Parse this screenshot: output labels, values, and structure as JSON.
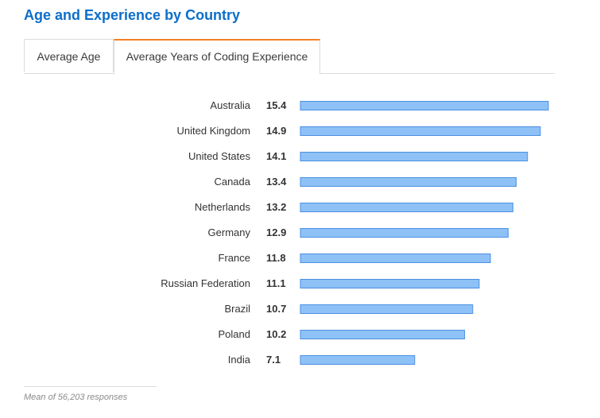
{
  "title": "Age and Experience by Country",
  "tabs": [
    {
      "label": "Average Age",
      "active": false
    },
    {
      "label": "Average Years of Coding Experience",
      "active": true
    }
  ],
  "colors": {
    "title": "#0c6ec9",
    "bar_fill": "#8ec1f6",
    "bar_stroke": "#4a90e2",
    "active_tab": "#f48024"
  },
  "chart_data": {
    "type": "bar",
    "orientation": "horizontal",
    "categories": [
      "Australia",
      "United Kingdom",
      "United States",
      "Canada",
      "Netherlands",
      "Germany",
      "France",
      "Russian Federation",
      "Brazil",
      "Poland",
      "India"
    ],
    "values": [
      15.4,
      14.9,
      14.1,
      13.4,
      13.2,
      12.9,
      11.8,
      11.1,
      10.7,
      10.2,
      7.1
    ],
    "value_labels": [
      "15.4",
      "14.9",
      "14.1",
      "13.4",
      "13.2",
      "12.9",
      "11.8",
      "11.1",
      "10.7",
      "10.2",
      "7.1"
    ],
    "xlim": [
      0,
      15.4
    ],
    "grid": false,
    "legend": "none"
  },
  "footnote": "Mean of 56,203 responses"
}
